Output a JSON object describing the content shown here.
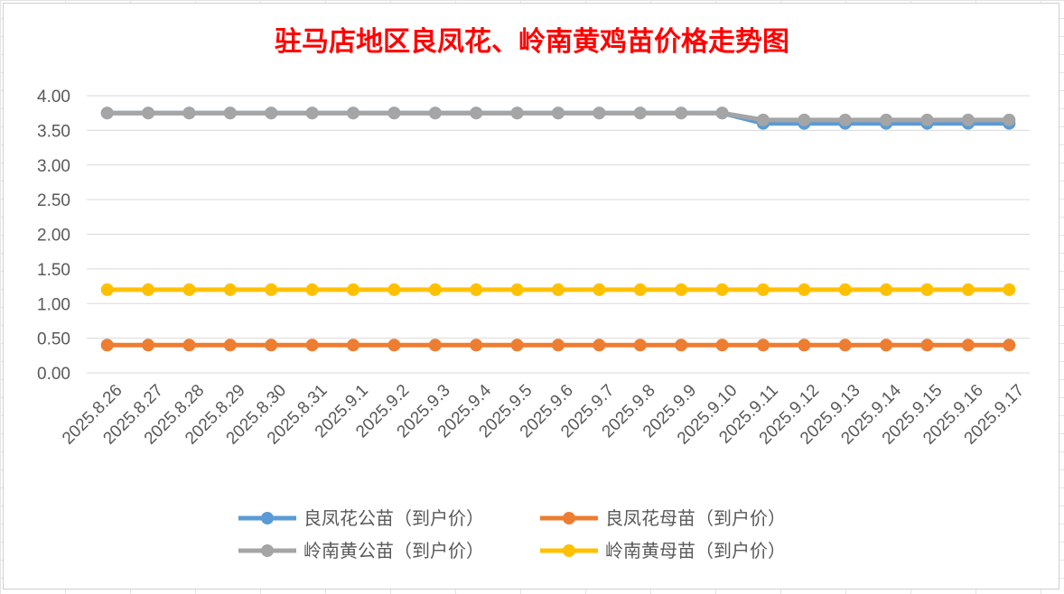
{
  "chart_data": {
    "type": "line",
    "title": "驻马店地区良凤花、岭南黄鸡苗价格走势图",
    "xlabel": "",
    "ylabel": "",
    "categories": [
      "2025.8.26",
      "2025.8.27",
      "2025.8.28",
      "2025.8.29",
      "2025.8.30",
      "2025.8.31",
      "2025.9.1",
      "2025.9.2",
      "2025.9.3",
      "2025.9.4",
      "2025.9.5",
      "2025.9.6",
      "2025.9.7",
      "2025.9.8",
      "2025.9.9",
      "2025.9.10",
      "2025.9.11",
      "2025.9.12",
      "2025.9.13",
      "2025.9.14",
      "2025.9.15",
      "2025.9.16",
      "2025.9.17"
    ],
    "ylim": [
      0,
      4
    ],
    "yticks": [
      "0.00",
      "0.50",
      "1.00",
      "1.50",
      "2.00",
      "2.50",
      "3.00",
      "3.50",
      "4.00"
    ],
    "grid": true,
    "legend_position": "bottom",
    "series": [
      {
        "name": "良凤花公苗（到户价）",
        "color": "#5b9bd5",
        "values": [
          3.75,
          3.75,
          3.75,
          3.75,
          3.75,
          3.75,
          3.75,
          3.75,
          3.75,
          3.75,
          3.75,
          3.75,
          3.75,
          3.75,
          3.75,
          3.75,
          3.6,
          3.6,
          3.6,
          3.6,
          3.6,
          3.6,
          3.6
        ]
      },
      {
        "name": "良凤花母苗（到户价）",
        "color": "#ed7d31",
        "values": [
          0.4,
          0.4,
          0.4,
          0.4,
          0.4,
          0.4,
          0.4,
          0.4,
          0.4,
          0.4,
          0.4,
          0.4,
          0.4,
          0.4,
          0.4,
          0.4,
          0.4,
          0.4,
          0.4,
          0.4,
          0.4,
          0.4,
          0.4
        ]
      },
      {
        "name": "岭南黄公苗（到户价）",
        "color": "#a5a5a5",
        "values": [
          3.75,
          3.75,
          3.75,
          3.75,
          3.75,
          3.75,
          3.75,
          3.75,
          3.75,
          3.75,
          3.75,
          3.75,
          3.75,
          3.75,
          3.75,
          3.75,
          3.65,
          3.65,
          3.65,
          3.65,
          3.65,
          3.65,
          3.65
        ]
      },
      {
        "name": "岭南黄母苗（到户价）",
        "color": "#ffc000",
        "values": [
          1.2,
          1.2,
          1.2,
          1.2,
          1.2,
          1.2,
          1.2,
          1.2,
          1.2,
          1.2,
          1.2,
          1.2,
          1.2,
          1.2,
          1.2,
          1.2,
          1.2,
          1.2,
          1.2,
          1.2,
          1.2,
          1.2,
          1.2
        ]
      }
    ]
  }
}
